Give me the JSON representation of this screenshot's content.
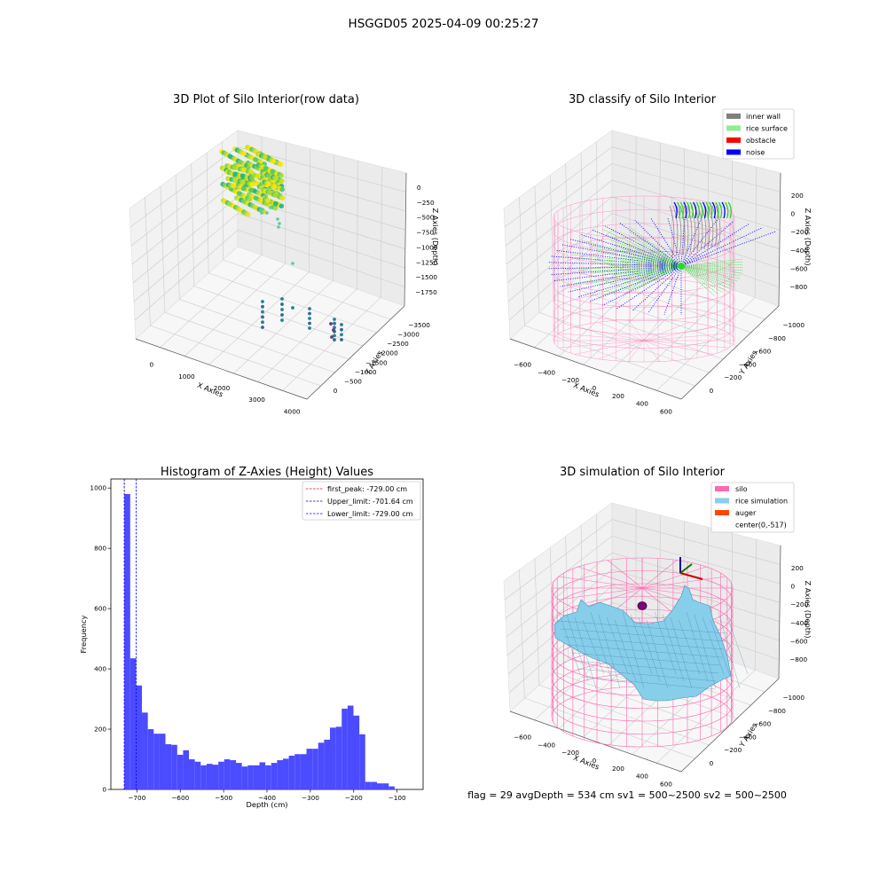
{
  "figure": {
    "suptitle": "HSGGD05 2025-04-09 00:25:27",
    "info_line": "flag = 29  avgDepth = 534 cm  sv1 = 500~2500  sv2 = 500~2500"
  },
  "colors": {
    "inner_wall": "#808080",
    "rice_surface": "#90ee90",
    "obstacle": "#ff0000",
    "noise": "#0000ff",
    "silo": "#ff69b4",
    "rice_simulation": "#87ceeb",
    "auger": "#ff4500",
    "hist_bar": "#4b4bff",
    "first_peak_line": "#ff0000",
    "limit_line": "#0000ff"
  },
  "chart_data": [
    {
      "type": "scatter3d",
      "title": "3D Plot of Silo Interior(row data)",
      "xlabel": "X Axies",
      "ylabel": "Y Axies",
      "zlabel": "Z Axies (Depth)",
      "x_ticks": [
        "0",
        "1000",
        "2000",
        "3000",
        "4000"
      ],
      "y_ticks": [
        "0",
        "−500",
        "−1000",
        "−1500",
        "−2000",
        "−2500",
        "−3000",
        "−3500"
      ],
      "z_ticks": [
        "0",
        "−250",
        "−500",
        "−750",
        "−1000",
        "−1250",
        "−1500",
        "−1750"
      ]
    },
    {
      "type": "scatter3d",
      "title": "3D classify of Silo Interior",
      "xlabel": "X Axies",
      "ylabel": "Y Axies",
      "zlabel": "Z Axies (Depth)",
      "x_ticks": [
        "−600",
        "−400",
        "−200",
        "0",
        "200",
        "400",
        "600"
      ],
      "y_ticks": [
        "0",
        "−200",
        "−400",
        "−600",
        "−800",
        "−1000"
      ],
      "z_ticks": [
        "200",
        "0",
        "−200",
        "−400",
        "−600",
        "−800"
      ],
      "legend": [
        "inner wall",
        "rice surface",
        "obstacle",
        "noise"
      ]
    },
    {
      "type": "bar",
      "title": "Histogram of Z-Axies (Height) Values",
      "xlabel": "Depth (cm)",
      "ylabel": "Frequency",
      "xlim": [
        -760,
        -40
      ],
      "ylim": [
        0,
        1030
      ],
      "x_ticks": [
        -700,
        -600,
        -500,
        -400,
        -300,
        -200,
        -100
      ],
      "x_tick_labels": [
        "−700",
        "−600",
        "−500",
        "−400",
        "−300",
        "−200",
        "−100"
      ],
      "y_ticks": [
        0,
        200,
        400,
        600,
        800,
        1000
      ],
      "bin_start": -729,
      "bin_width": 13.55,
      "values": [
        980,
        435,
        345,
        255,
        200,
        185,
        185,
        150,
        148,
        115,
        130,
        100,
        92,
        80,
        85,
        82,
        92,
        100,
        97,
        88,
        76,
        80,
        80,
        90,
        80,
        88,
        97,
        102,
        112,
        117,
        117,
        135,
        135,
        155,
        165,
        205,
        208,
        268,
        278,
        245,
        183,
        25,
        25,
        20,
        20,
        10
      ],
      "vlines": [
        {
          "label": "first_peak: -729.00 cm",
          "x": -729.0,
          "style": "first_peak"
        },
        {
          "label": "Upper_limit: -701.64 cm",
          "x": -701.64,
          "style": "limit"
        },
        {
          "label": "Lower_limit: -729.00 cm",
          "x": -729.0,
          "style": "limit"
        }
      ]
    },
    {
      "type": "surface3d",
      "title": "3D simulation of Silo Interior",
      "xlabel": "X Axies",
      "ylabel": "Y Axies",
      "zlabel": "Z Axies (Depth)",
      "x_ticks": [
        "−600",
        "−400",
        "−200",
        "0",
        "200",
        "400",
        "600"
      ],
      "y_ticks": [
        "0",
        "−200",
        "−400",
        "−600",
        "−800",
        "−1000"
      ],
      "z_ticks": [
        "200",
        "0",
        "−200",
        "−400",
        "−600",
        "−800"
      ],
      "legend": [
        "silo",
        "rice simulation",
        "auger",
        "center(0,-517)"
      ]
    }
  ]
}
